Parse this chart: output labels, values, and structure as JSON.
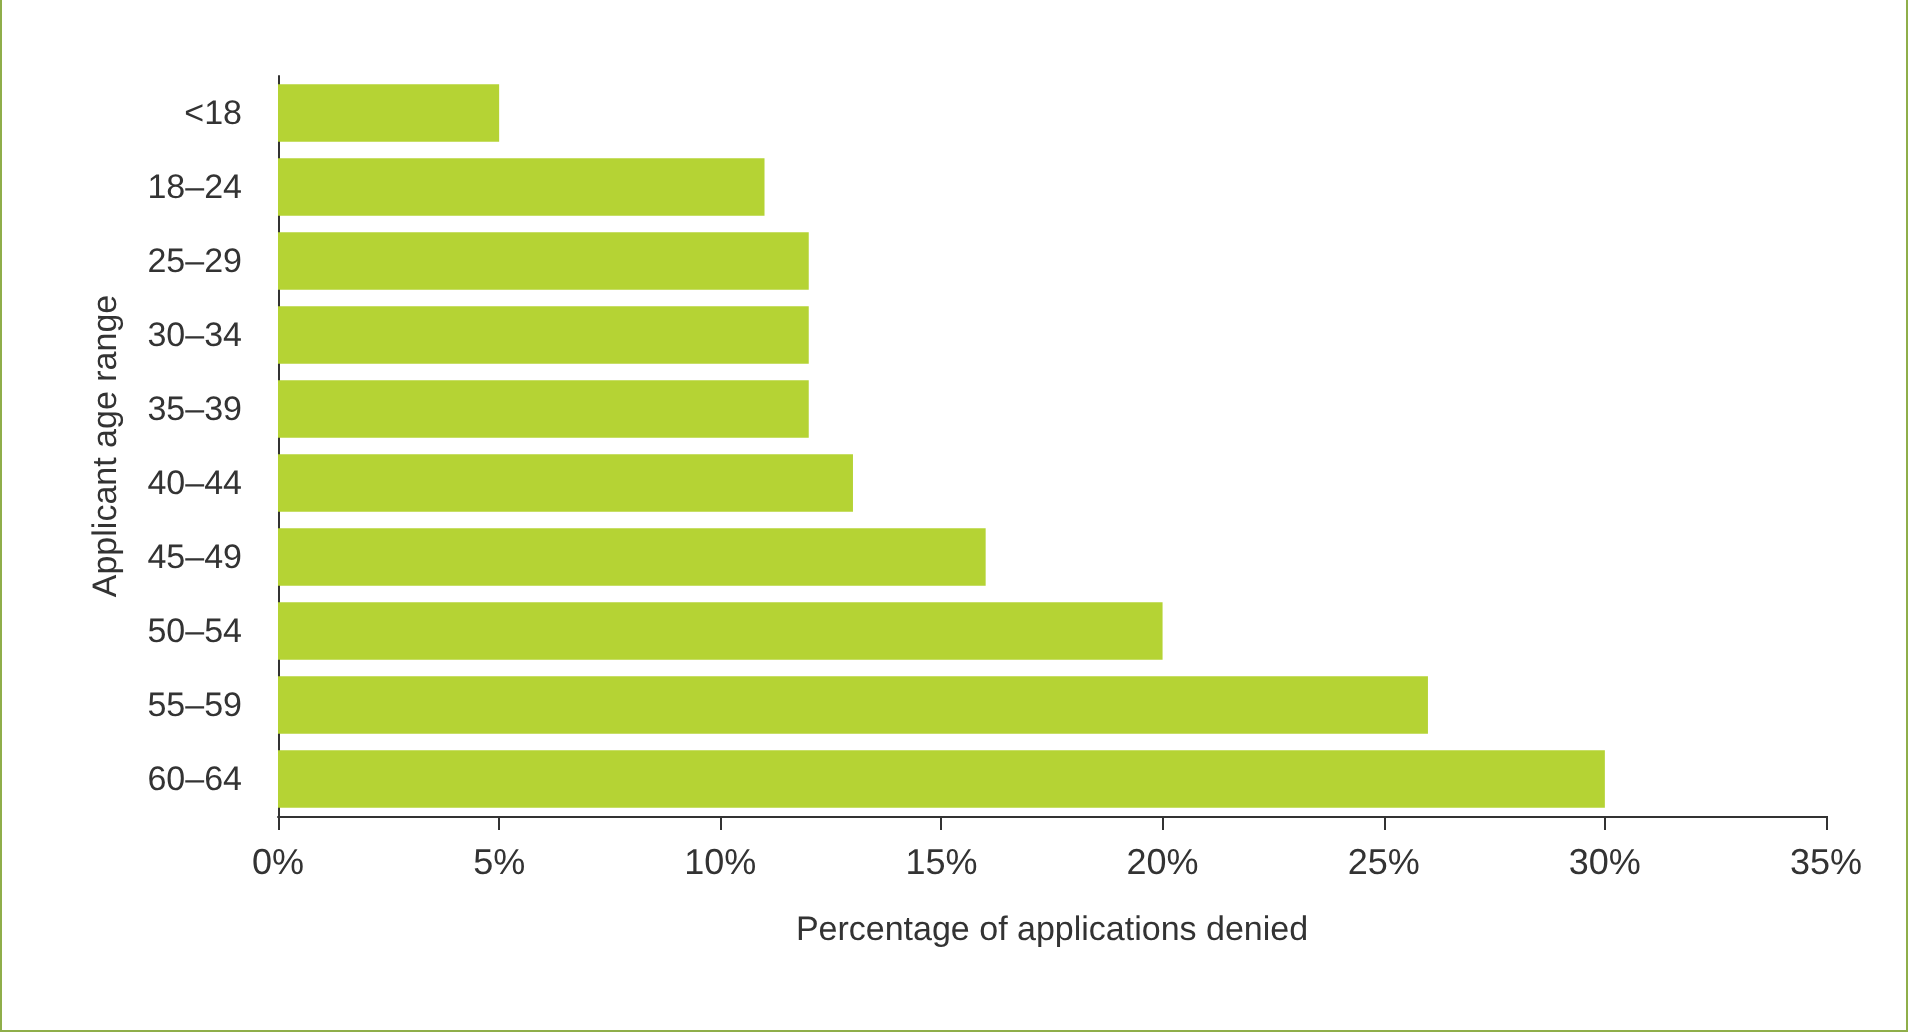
{
  "chart_data": {
    "type": "bar",
    "orientation": "horizontal",
    "xlabel": "Percentage of applications denied",
    "ylabel": "Applicant age range",
    "categories": [
      "<18",
      "18–24",
      "25–29",
      "30–34",
      "35–39",
      "40–44",
      "45–49",
      "50–54",
      "55–59",
      "60–64"
    ],
    "values": [
      5,
      11,
      12,
      12,
      12,
      13,
      16,
      20,
      26,
      30
    ],
    "color": "#b5d334",
    "xlim": [
      0,
      35
    ],
    "xticks": [
      {
        "value": 0,
        "label": "0%"
      },
      {
        "value": 5,
        "label": "5%"
      },
      {
        "value": 10,
        "label": "10%"
      },
      {
        "value": 15,
        "label": "15%"
      },
      {
        "value": 20,
        "label": "20%"
      },
      {
        "value": 25,
        "label": "25%"
      },
      {
        "value": 30,
        "label": "30%"
      },
      {
        "value": 35,
        "label": "35%"
      }
    ],
    "grid": false
  }
}
